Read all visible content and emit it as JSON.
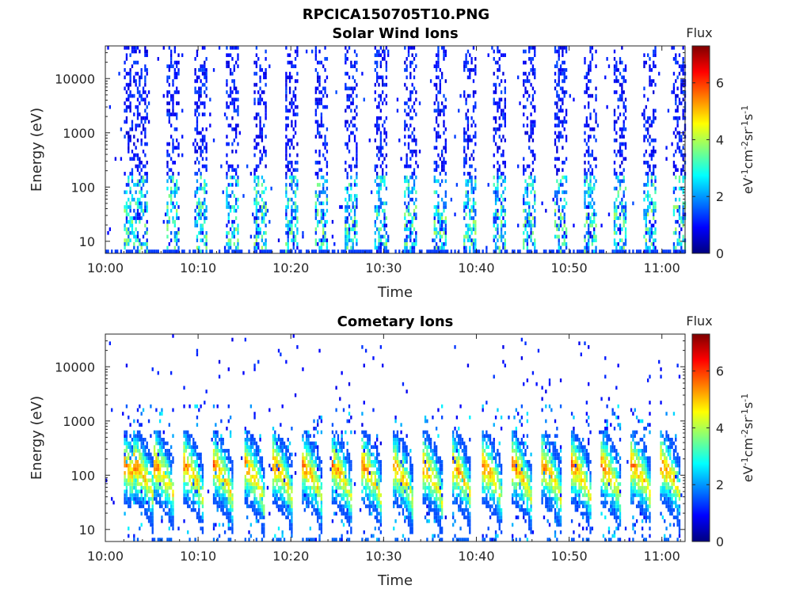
{
  "figure_title": "RPCICA150705T10.PNG",
  "colors": {
    "colormap": [
      "#00007f",
      "#0000ff",
      "#007fff",
      "#00ffff",
      "#7fff7f",
      "#ffff00",
      "#ff7f00",
      "#ff0000",
      "#7f0000"
    ],
    "frame": "#262626",
    "background": "#ffffff"
  },
  "chart_data": [
    {
      "type": "heatmap",
      "title": "Solar Wind Ions",
      "xlabel": "Time",
      "ylabel": "Energy (eV)",
      "x_ticks": [
        "10:00",
        "10:10",
        "10:20",
        "10:30",
        "10:40",
        "10:50",
        "11:00"
      ],
      "x_tick_minutes": [
        0,
        10,
        20,
        30,
        40,
        50,
        60
      ],
      "xlim_minutes": [
        0,
        62.5
      ],
      "y_scale": "log",
      "ylim": [
        6,
        40000
      ],
      "y_ticks": [
        "10",
        "100",
        "1000",
        "10000"
      ],
      "y_tick_values": [
        10,
        100,
        1000,
        10000
      ],
      "colorbar": {
        "title": "Flux",
        "label": "eV-1cm-2sr-1s-1",
        "range": [
          0,
          7.3
        ],
        "ticks": [
          "0",
          "2",
          "4",
          "6"
        ],
        "tick_values": [
          0,
          2,
          4,
          6
        ]
      },
      "sweep_start_minutes": [
        1.8,
        3.2,
        6.5,
        9.5,
        12.8,
        15.9,
        19.3,
        22.4,
        25.6,
        28.8,
        32.1,
        35.3,
        38.6,
        41.8,
        45.0,
        48.3,
        51.5,
        54.7,
        57.9,
        61.1
      ],
      "pattern": "solar_wind",
      "grid": false,
      "legend": "colorbar-right"
    },
    {
      "type": "heatmap",
      "title": "Cometary Ions",
      "xlabel": "Time",
      "ylabel": "Energy (eV)",
      "x_ticks": [
        "10:00",
        "10:10",
        "10:20",
        "10:30",
        "10:40",
        "10:50",
        "11:00"
      ],
      "x_tick_minutes": [
        0,
        10,
        20,
        30,
        40,
        50,
        60
      ],
      "xlim_minutes": [
        0,
        62.5
      ],
      "y_scale": "log",
      "ylim": [
        6,
        40000
      ],
      "y_ticks": [
        "10",
        "100",
        "1000",
        "10000"
      ],
      "y_tick_values": [
        10,
        100,
        1000,
        10000
      ],
      "colorbar": {
        "title": "Flux",
        "label": "eV-1cm-2sr-1s-1",
        "range": [
          0,
          7.3
        ],
        "ticks": [
          "0",
          "2",
          "4",
          "6"
        ],
        "tick_values": [
          0,
          2,
          4,
          6
        ]
      },
      "sweep_start_minutes": [
        1.8,
        3.0,
        5.2,
        8.3,
        11.5,
        14.8,
        17.9,
        21.1,
        24.3,
        27.5,
        30.8,
        34.0,
        37.2,
        40.5,
        43.7,
        46.9,
        50.1,
        53.3,
        56.6,
        59.8
      ],
      "pattern": "cometary",
      "grid": false,
      "legend": "colorbar-right"
    }
  ]
}
